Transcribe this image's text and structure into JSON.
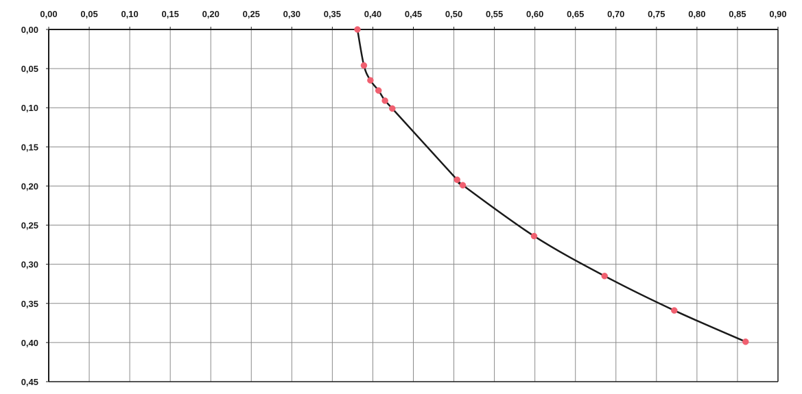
{
  "chart_data": {
    "type": "scatter",
    "title": "",
    "xlabel": "",
    "ylabel": "",
    "x_axis_position": "top",
    "y_axis_inverted": true,
    "xlim": [
      0,
      0.9
    ],
    "ylim": [
      0,
      0.45
    ],
    "grid": true,
    "x_ticks": [
      "0,00",
      "0,05",
      "0,10",
      "0,15",
      "0,20",
      "0,25",
      "0,30",
      "0,35",
      "0,40",
      "0,45",
      "0,50",
      "0,55",
      "0,60",
      "0,65",
      "0,70",
      "0,75",
      "0,80",
      "0,85",
      "0,90"
    ],
    "y_ticks": [
      "0,00",
      "0,05",
      "0,10",
      "0,15",
      "0,20",
      "0,25",
      "0,30",
      "0,35",
      "0,40",
      "0,45"
    ],
    "series": [
      {
        "marker_color": "#f06070",
        "line_color": "#1a1a1a",
        "points": [
          {
            "x": 0.381,
            "y": 0.0
          },
          {
            "x": 0.389,
            "y": 0.046
          },
          {
            "x": 0.397,
            "y": 0.065
          },
          {
            "x": 0.407,
            "y": 0.078
          },
          {
            "x": 0.415,
            "y": 0.091
          },
          {
            "x": 0.424,
            "y": 0.101
          },
          {
            "x": 0.504,
            "y": 0.192
          },
          {
            "x": 0.511,
            "y": 0.199
          },
          {
            "x": 0.599,
            "y": 0.264
          },
          {
            "x": 0.686,
            "y": 0.315
          },
          {
            "x": 0.772,
            "y": 0.359
          },
          {
            "x": 0.86,
            "y": 0.399
          }
        ]
      }
    ]
  }
}
